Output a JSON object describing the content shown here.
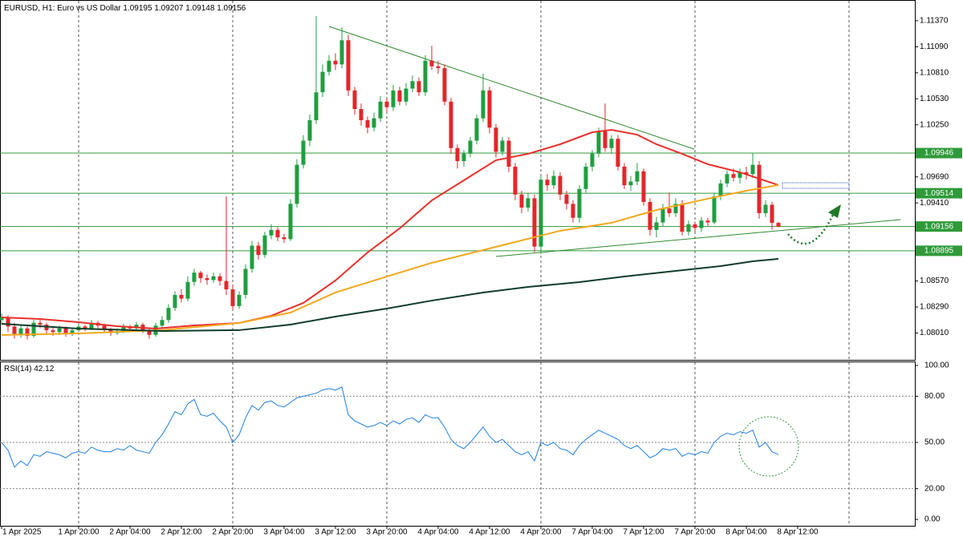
{
  "chart_data": {
    "type": "candlestick",
    "symbol": "EURUSD, H1:",
    "description": "Euro vs US Dollar",
    "colors": {
      "up": "#1f9e3f",
      "down": "#e3262a"
    },
    "categories": [
      "1 Apr 2025",
      null,
      null,
      null,
      null,
      null,
      null,
      null,
      null,
      null,
      null,
      null,
      "1 Apr 20:00",
      null,
      null,
      null,
      null,
      null,
      null,
      null,
      "2 Apr 04:00",
      null,
      null,
      null,
      null,
      null,
      null,
      null,
      "2 Apr 12:00",
      null,
      null,
      null,
      null,
      null,
      null,
      null,
      "2 Apr 20:00",
      null,
      null,
      null,
      null,
      null,
      null,
      null,
      "3 Apr 04:00",
      null,
      null,
      null,
      null,
      null,
      null,
      null,
      "3 Apr 12:00",
      null,
      null,
      null,
      null,
      null,
      null,
      null,
      "3 Apr 20:00",
      null,
      null,
      null,
      null,
      null,
      null,
      null,
      "4 Apr 04:00",
      null,
      null,
      null,
      null,
      null,
      null,
      null,
      "4 Apr 12:00",
      null,
      null,
      null,
      null,
      null,
      null,
      null,
      "4 Apr 20:00",
      null,
      null,
      null,
      null,
      null,
      null,
      null,
      "7 Apr 04:00",
      null,
      null,
      null,
      null,
      null,
      null,
      null,
      "7 Apr 12:00",
      null,
      null,
      null,
      null,
      null,
      null,
      null,
      "7 Apr 20:00",
      null,
      null,
      null,
      null,
      null,
      null,
      null,
      "8 Apr 04:00",
      null,
      null,
      null,
      null,
      null,
      null,
      null,
      "8 Apr 12:00"
    ],
    "ohlc": [
      [
        1.0815,
        1.0822,
        1.081,
        1.0818
      ],
      [
        1.0818,
        1.082,
        1.0802,
        1.0808
      ],
      [
        1.0808,
        1.0812,
        1.0795,
        1.08
      ],
      [
        1.08,
        1.081,
        1.0796,
        1.0806
      ],
      [
        1.0806,
        1.0808,
        1.0794,
        1.0798
      ],
      [
        1.0798,
        1.0815,
        1.0796,
        1.0812
      ],
      [
        1.0812,
        1.0816,
        1.0806,
        1.081
      ],
      [
        1.081,
        1.0812,
        1.08,
        1.0804
      ],
      [
        1.0804,
        1.0807,
        1.0798,
        1.0802
      ],
      [
        1.0802,
        1.0809,
        1.0799,
        1.0806
      ],
      [
        1.0806,
        1.0808,
        1.0797,
        1.08
      ],
      [
        1.08,
        1.0806,
        1.0798,
        1.0804
      ],
      [
        1.0804,
        1.0811,
        1.0802,
        1.0808
      ],
      [
        1.0808,
        1.081,
        1.0803,
        1.0806
      ],
      [
        1.0806,
        1.0815,
        1.0804,
        1.0812
      ],
      [
        1.0812,
        1.0814,
        1.0806,
        1.0809
      ],
      [
        1.0809,
        1.0811,
        1.0802,
        1.0805
      ],
      [
        1.0805,
        1.0807,
        1.0798,
        1.0801
      ],
      [
        1.0801,
        1.0806,
        1.0799,
        1.0803
      ],
      [
        1.0803,
        1.0811,
        1.0801,
        1.0808
      ],
      [
        1.0808,
        1.081,
        1.0803,
        1.0806
      ],
      [
        1.0806,
        1.0813,
        1.0804,
        1.081
      ],
      [
        1.081,
        1.0812,
        1.0801,
        1.0804
      ],
      [
        1.0804,
        1.0806,
        1.0795,
        1.0799
      ],
      [
        1.0799,
        1.0812,
        1.0797,
        1.0809
      ],
      [
        1.0809,
        1.0819,
        1.0806,
        1.0815
      ],
      [
        1.0815,
        1.0832,
        1.0812,
        1.0828
      ],
      [
        1.0828,
        1.0846,
        1.0825,
        1.0842
      ],
      [
        1.0842,
        1.0848,
        1.0834,
        1.0838
      ],
      [
        1.0838,
        1.0862,
        1.0835,
        1.0856
      ],
      [
        1.0856,
        1.087,
        1.0852,
        1.0866
      ],
      [
        1.0866,
        1.0868,
        1.0855,
        1.086
      ],
      [
        1.086,
        1.0864,
        1.0853,
        1.0858
      ],
      [
        1.0858,
        1.0866,
        1.0855,
        1.0862
      ],
      [
        1.0862,
        1.0865,
        1.0852,
        1.0857
      ],
      [
        1.0857,
        1.0948,
        1.0842,
        1.0848
      ],
      [
        1.0848,
        1.0852,
        1.0826,
        1.083
      ],
      [
        1.083,
        1.0846,
        1.0827,
        1.0842
      ],
      [
        1.0842,
        1.0875,
        1.0838,
        1.087
      ],
      [
        1.087,
        1.09,
        1.0866,
        1.0895
      ],
      [
        1.0895,
        1.0899,
        1.088,
        1.0885
      ],
      [
        1.0885,
        1.091,
        1.0882,
        1.0906
      ],
      [
        1.0906,
        1.0918,
        1.0902,
        1.0912
      ],
      [
        1.0912,
        1.0915,
        1.09,
        1.0904
      ],
      [
        1.0904,
        1.0908,
        1.0898,
        1.0902
      ],
      [
        1.0902,
        1.0945,
        1.09,
        1.094
      ],
      [
        1.094,
        1.0988,
        1.0936,
        1.0982
      ],
      [
        1.0982,
        1.1014,
        1.0978,
        1.1008
      ],
      [
        1.1008,
        1.1036,
        1.1002,
        1.103
      ],
      [
        1.103,
        1.1142,
        1.1026,
        1.106
      ],
      [
        1.106,
        1.109,
        1.1055,
        1.1082
      ],
      [
        1.1082,
        1.11,
        1.1078,
        1.1094
      ],
      [
        1.1094,
        1.1102,
        1.1084,
        1.109
      ],
      [
        1.109,
        1.113,
        1.1086,
        1.1116
      ],
      [
        1.1116,
        1.1122,
        1.1056,
        1.1062
      ],
      [
        1.1062,
        1.1066,
        1.1036,
        1.1042
      ],
      [
        1.1042,
        1.1048,
        1.1024,
        1.103
      ],
      [
        1.103,
        1.1034,
        1.1016,
        1.1022
      ],
      [
        1.1022,
        1.1038,
        1.1018,
        1.1032
      ],
      [
        1.1032,
        1.1056,
        1.1028,
        1.105
      ],
      [
        1.105,
        1.1054,
        1.1038,
        1.1044
      ],
      [
        1.1044,
        1.1068,
        1.104,
        1.1062
      ],
      [
        1.1062,
        1.1066,
        1.1046,
        1.105
      ],
      [
        1.105,
        1.107,
        1.1046,
        1.1064
      ],
      [
        1.1064,
        1.1078,
        1.106,
        1.1072
      ],
      [
        1.1072,
        1.1076,
        1.1056,
        1.106
      ],
      [
        1.106,
        1.11,
        1.1056,
        1.1094
      ],
      [
        1.1094,
        1.111,
        1.1084,
        1.1088
      ],
      [
        1.1088,
        1.1094,
        1.108,
        1.1086
      ],
      [
        1.1086,
        1.109,
        1.1046,
        1.105
      ],
      [
        1.105,
        1.1054,
        1.0994,
        1.1
      ],
      [
        1.1,
        1.1004,
        1.0978,
        1.0986
      ],
      [
        1.0986,
        1.0998,
        1.098,
        1.0994
      ],
      [
        1.0994,
        1.1012,
        1.099,
        1.1008
      ],
      [
        1.1008,
        1.1036,
        1.1004,
        1.1032
      ],
      [
        1.1032,
        1.108,
        1.1028,
        1.1062
      ],
      [
        1.1062,
        1.1066,
        1.1016,
        1.1022
      ],
      [
        1.1022,
        1.1026,
        1.099,
        1.0996
      ],
      [
        1.0996,
        1.1012,
        1.0992,
        1.1008
      ],
      [
        1.1008,
        1.1012,
        1.0974,
        1.098
      ],
      [
        1.098,
        1.0984,
        1.0944,
        1.095
      ],
      [
        1.095,
        1.0954,
        1.093,
        1.0936
      ],
      [
        1.0936,
        1.0952,
        1.0932,
        1.0946
      ],
      [
        1.0946,
        1.095,
        1.0888,
        1.0894
      ],
      [
        1.0894,
        1.097,
        1.0886,
        1.0966
      ],
      [
        1.0966,
        1.0972,
        1.0954,
        1.096
      ],
      [
        1.096,
        1.0976,
        1.0956,
        1.097
      ],
      [
        1.097,
        1.0974,
        1.0944,
        1.095
      ],
      [
        1.095,
        1.0954,
        1.0934,
        1.094
      ],
      [
        1.094,
        1.0944,
        1.092,
        1.0925
      ],
      [
        1.0925,
        1.096,
        1.092,
        1.0956
      ],
      [
        1.0956,
        1.0984,
        1.0952,
        1.098
      ],
      [
        1.098,
        1.0998,
        1.0975,
        1.0994
      ],
      [
        1.0994,
        1.1022,
        1.099,
        1.1018
      ],
      [
        1.1018,
        1.1048,
        1.0996,
        1.1
      ],
      [
        1.1,
        1.1014,
        1.0994,
        1.101
      ],
      [
        1.101,
        1.1014,
        1.0976,
        1.098
      ],
      [
        1.098,
        1.0984,
        1.0956,
        1.096
      ],
      [
        1.096,
        1.097,
        1.0954,
        1.0964
      ],
      [
        1.0964,
        1.0984,
        1.096,
        1.0975
      ],
      [
        1.0975,
        1.0978,
        1.0938,
        1.0942
      ],
      [
        1.0942,
        1.0946,
        1.0906,
        1.0912
      ],
      [
        1.0912,
        1.0926,
        1.0904,
        1.092
      ],
      [
        1.092,
        1.094,
        1.0916,
        1.0935
      ],
      [
        1.0935,
        1.0952,
        1.0926,
        1.093
      ],
      [
        1.093,
        1.0946,
        1.0926,
        1.094
      ],
      [
        1.094,
        1.0944,
        1.0906,
        1.091
      ],
      [
        1.091,
        1.0922,
        1.0906,
        1.0918
      ],
      [
        1.0918,
        1.0921,
        1.091,
        1.0914
      ],
      [
        1.0914,
        1.0926,
        1.091,
        1.0922
      ],
      [
        1.0922,
        1.0925,
        1.0916,
        1.092
      ],
      [
        1.092,
        1.0952,
        1.0918,
        1.0948
      ],
      [
        1.0948,
        1.0966,
        1.0944,
        1.0962
      ],
      [
        1.0962,
        1.0976,
        1.0958,
        1.0972
      ],
      [
        1.0972,
        1.0978,
        1.0964,
        1.0968
      ],
      [
        1.0968,
        1.0978,
        1.0962,
        1.0974
      ],
      [
        1.0974,
        1.098,
        1.0966,
        1.0972
      ],
      [
        1.0972,
        1.0995,
        1.0968,
        1.0982
      ],
      [
        1.0982,
        1.0986,
        1.0924,
        1.093
      ],
      [
        1.093,
        1.0944,
        1.0926,
        1.0939
      ],
      [
        1.0939,
        1.0942,
        1.0912,
        1.09195
      ],
      [
        1.09195,
        1.09207,
        1.09148,
        1.09156
      ],
      null,
      null,
      null
    ],
    "ylim": [
      1.0773,
      1.1155
    ],
    "yticks": [
      {
        "value": 1.1137,
        "label": "1.11370"
      },
      {
        "value": 1.1109,
        "label": "1.11090"
      },
      {
        "value": 1.1081,
        "label": "1.10810"
      },
      {
        "value": 1.1053,
        "label": "1.10530"
      },
      {
        "value": 1.1025,
        "label": "1.10250"
      },
      {
        "value": 1.0969,
        "label": "1.09690"
      },
      {
        "value": 1.0941,
        "label": "1.09410"
      },
      {
        "value": 1.0857,
        "label": "1.08570"
      },
      {
        "value": 1.0829,
        "label": "1.08290"
      },
      {
        "value": 1.0801,
        "label": "1.08010"
      }
    ],
    "levels": [
      1.09946,
      1.09514,
      1.08895
    ],
    "level_color": "#2f9a3a",
    "overlays": [
      {
        "color": "#e8302a",
        "x": [
          0,
          6,
          12,
          18,
          24,
          30,
          37,
          42,
          47,
          52,
          57,
          62,
          67,
          72,
          77,
          82,
          87,
          92,
          95,
          99,
          102,
          106,
          110,
          115,
          121
        ],
        "values": [
          1.08178,
          1.08161,
          1.08127,
          1.08084,
          1.08058,
          1.08092,
          1.08118,
          1.08196,
          1.08334,
          1.08575,
          1.08877,
          1.09136,
          1.09437,
          1.09653,
          1.09869,
          1.09938,
          1.10041,
          1.1017,
          1.10196,
          1.10144,
          1.10041,
          1.09938,
          1.09826,
          1.0974,
          1.09602
        ]
      },
      {
        "color": "#f2a81d",
        "x": [
          0,
          12,
          25,
          37,
          45,
          52,
          60,
          67,
          75,
          82,
          87,
          95,
          102,
          110,
          116,
          121
        ],
        "values": [
          1.07989,
          1.08006,
          1.08041,
          1.08118,
          1.0823,
          1.08446,
          1.08618,
          1.08765,
          1.08903,
          1.09024,
          1.0911,
          1.09196,
          1.09334,
          1.09455,
          1.09541,
          1.09602
        ]
      },
      {
        "color": "#0f3d2a",
        "x": [
          0,
          12,
          25,
          37,
          45,
          52,
          60,
          67,
          75,
          82,
          90,
          97,
          105,
          112,
          117,
          121
        ],
        "values": [
          1.08109,
          1.08058,
          1.08032,
          1.08041,
          1.08101,
          1.08187,
          1.08273,
          1.08359,
          1.08446,
          1.08506,
          1.08558,
          1.08618,
          1.08679,
          1.0873,
          1.08782,
          1.08808
        ]
      }
    ],
    "rsi": {
      "name": "RSI(14)",
      "color": "#1e7fe0",
      "values": [
        50,
        45,
        34,
        38,
        35,
        42,
        41,
        44,
        43,
        42,
        40,
        43,
        44,
        43,
        47,
        45,
        44,
        44,
        46,
        45,
        48,
        45,
        44,
        43,
        50,
        55,
        62,
        70,
        68,
        75,
        78,
        68,
        67,
        69,
        64,
        60,
        50,
        55,
        66,
        74,
        71,
        76,
        77,
        74,
        73,
        76,
        79,
        80,
        81,
        82,
        84,
        85,
        84,
        86,
        68,
        64,
        62,
        60,
        61,
        63,
        61,
        64,
        62,
        65,
        66,
        63,
        68,
        66,
        66,
        60,
        52,
        48,
        46,
        50,
        55,
        60,
        54,
        50,
        52,
        48,
        44,
        42,
        44,
        38,
        50,
        48,
        50,
        46,
        45,
        42,
        48,
        52,
        55,
        58,
        56,
        54,
        52,
        48,
        46,
        48,
        44,
        40,
        42,
        46,
        45,
        46,
        41,
        43,
        42,
        44,
        43,
        50,
        54,
        56,
        55,
        57,
        56,
        58,
        47,
        50,
        44,
        42.12,
        null,
        null,
        null
      ],
      "ylim": [
        -3.6,
        102.6
      ],
      "yticks": [
        {
          "value": 100,
          "label": "100.00"
        },
        {
          "value": 80,
          "label": "80.00"
        },
        {
          "value": 50,
          "label": "50.00"
        },
        {
          "value": 20,
          "label": "20.00"
        },
        {
          "value": 0,
          "label": "0.00"
        }
      ]
    }
  }
}
